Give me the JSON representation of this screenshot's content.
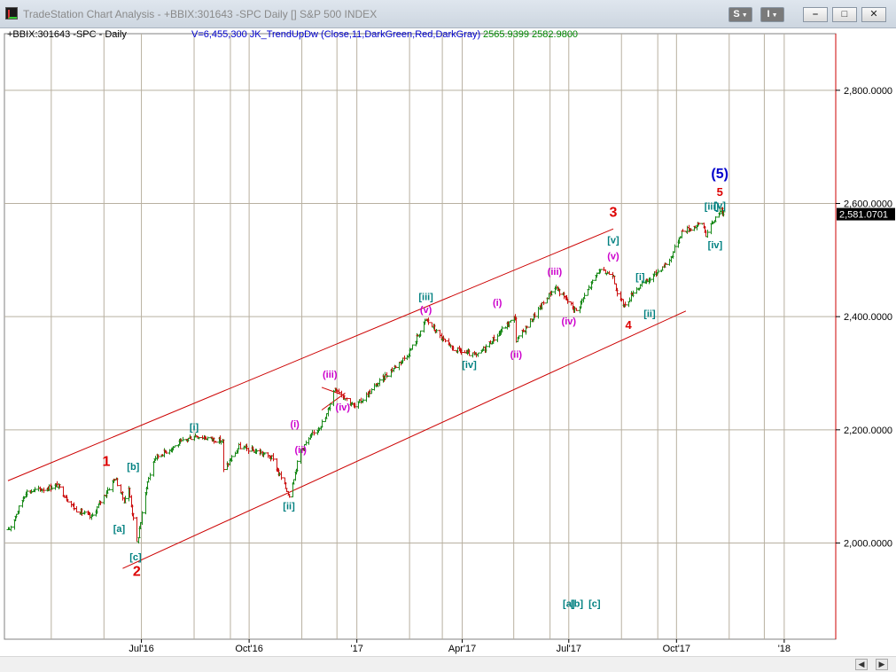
{
  "window": {
    "title": "TradeStation Chart Analysis - +BBIX:301643 -SPC Daily [] S&P 500 INDEX",
    "symbol_button": "S",
    "interval_button": "I"
  },
  "info": {
    "symbol": "+BBIX:301643 -SPC - Daily",
    "volume_indicator": "V=6,455,300  JK_TrendUpDw  (Close,11,DarkGreen,Red,DarkGray)",
    "values": "2565.9399  2582.9800"
  },
  "colors": {
    "up_bar": "#1a8a1a",
    "down_bar": "#cc1111",
    "channel": "#cc0000",
    "grid": "#b8b0a0",
    "wave_red": "#dd0000",
    "wave_teal": "#008080",
    "wave_magenta": "#cc00cc",
    "wave_blue": "#0000cc",
    "last_price_bg": "#000000"
  },
  "chart_data": {
    "type": "ohlc",
    "instrument": "S&P 500 INDEX",
    "interval": "Daily",
    "ylim": [
      1830,
      2900
    ],
    "y_ticks": [
      "2,000.0000",
      "2,200.0000",
      "2,400.0000",
      "2,600.0000",
      "2,800.0000"
    ],
    "y_tick_values": [
      2000,
      2200,
      2400,
      2600,
      2800
    ],
    "x_ticks": [
      "Jul'16",
      "Oct'16",
      "'17",
      "Apr'17",
      "Jul'17",
      "Oct'17",
      "'18"
    ],
    "x_tick_dates": [
      "2016-07-01",
      "2016-10-01",
      "2017-01-01",
      "2017-04-01",
      "2017-07-01",
      "2017-10-01",
      "2018-01-01"
    ],
    "x_range": [
      "2016-03-06",
      "2018-02-14"
    ],
    "last_price": "2,581.0701",
    "last_price_value": 2581.07,
    "price_path": [
      [
        "2016-03-09",
        2020
      ],
      [
        "2016-03-24",
        2090
      ],
      [
        "2016-04-07",
        2095
      ],
      [
        "2016-04-20",
        2102
      ],
      [
        "2016-05-05",
        2060
      ],
      [
        "2016-05-19",
        2045
      ],
      [
        "2016-06-08",
        2115
      ],
      [
        "2016-06-16",
        2075
      ],
      [
        "2016-06-20",
        2095
      ],
      [
        "2016-06-27",
        2000
      ],
      [
        "2016-07-05",
        2100
      ],
      [
        "2016-07-12",
        2150
      ],
      [
        "2016-08-01",
        2175
      ],
      [
        "2016-08-15",
        2190
      ],
      [
        "2016-09-08",
        2180
      ],
      [
        "2016-09-09",
        2128
      ],
      [
        "2016-09-22",
        2170
      ],
      [
        "2016-10-10",
        2160
      ],
      [
        "2016-10-20",
        2150
      ],
      [
        "2016-11-04",
        2084
      ],
      [
        "2016-11-14",
        2165
      ],
      [
        "2016-12-05",
        2220
      ],
      [
        "2016-12-13",
        2275
      ],
      [
        "2016-12-30",
        2240
      ],
      [
        "2017-01-25",
        2295
      ],
      [
        "2017-02-14",
        2335
      ],
      [
        "2017-03-01",
        2395
      ],
      [
        "2017-03-21",
        2345
      ],
      [
        "2017-04-13",
        2330
      ],
      [
        "2017-05-16",
        2400
      ],
      [
        "2017-05-17",
        2357
      ],
      [
        "2017-06-19",
        2453
      ],
      [
        "2017-07-03",
        2420
      ],
      [
        "2017-07-07",
        2410
      ],
      [
        "2017-07-26",
        2480
      ],
      [
        "2017-08-08",
        2475
      ],
      [
        "2017-08-11",
        2437
      ],
      [
        "2017-08-18",
        2418
      ],
      [
        "2017-08-25",
        2445
      ],
      [
        "2017-09-07",
        2465
      ],
      [
        "2017-09-25",
        2500
      ],
      [
        "2017-10-05",
        2550
      ],
      [
        "2017-10-23",
        2565
      ],
      [
        "2017-10-26",
        2545
      ],
      [
        "2017-11-07",
        2590
      ],
      [
        "2017-11-10",
        2581
      ]
    ],
    "channel_lines": [
      {
        "from": [
          "2016-03-09",
          2110
        ],
        "to": [
          "2017-08-08",
          2555
        ]
      },
      {
        "from": [
          "2016-06-15",
          1955
        ],
        "to": [
          "2017-10-09",
          2410
        ]
      },
      {
        "from": [
          "2016-12-02",
          2275
        ],
        "to": [
          "2016-12-22",
          2260
        ]
      },
      {
        "from": [
          "2016-12-02",
          2235
        ],
        "to": [
          "2016-12-22",
          2265
        ]
      }
    ],
    "wave_labels": [
      {
        "text": "1",
        "date": "2016-06-01",
        "price": 2145,
        "color": "red",
        "size": "large"
      },
      {
        "text": "2",
        "date": "2016-06-27",
        "price": 1950,
        "color": "red",
        "size": "large"
      },
      {
        "text": "3",
        "date": "2017-08-08",
        "price": 2585,
        "color": "red",
        "size": "large"
      },
      {
        "text": "4",
        "date": "2017-08-21",
        "price": 2385,
        "color": "red",
        "size": "medium"
      },
      {
        "text": "5",
        "date": "2017-11-07",
        "price": 2620,
        "color": "red",
        "size": "medium"
      },
      {
        "text": "(5)",
        "date": "2017-11-07",
        "price": 2653,
        "color": "blue",
        "size": "xlarge"
      },
      {
        "text": "[a]",
        "date": "2016-06-12",
        "price": 2025,
        "color": "teal"
      },
      {
        "text": "[b]",
        "date": "2016-06-24",
        "price": 2135,
        "color": "teal"
      },
      {
        "text": "[c]",
        "date": "2016-06-26",
        "price": 1975,
        "color": "teal"
      },
      {
        "text": "[i]",
        "date": "2016-08-15",
        "price": 2205,
        "color": "teal"
      },
      {
        "text": "[ii]",
        "date": "2016-11-04",
        "price": 2065,
        "color": "teal"
      },
      {
        "text": "[iii]",
        "date": "2017-03-01",
        "price": 2435,
        "color": "teal"
      },
      {
        "text": "[iv]",
        "date": "2017-04-07",
        "price": 2315,
        "color": "teal"
      },
      {
        "text": "[v]",
        "date": "2017-08-08",
        "price": 2535,
        "color": "teal"
      },
      {
        "text": "[i]",
        "date": "2017-08-31",
        "price": 2470,
        "color": "teal"
      },
      {
        "text": "[ii]",
        "date": "2017-09-08",
        "price": 2405,
        "color": "teal"
      },
      {
        "text": "[iii]",
        "date": "2017-10-31",
        "price": 2595,
        "color": "teal"
      },
      {
        "text": "[iv]",
        "date": "2017-11-03",
        "price": 2527,
        "color": "teal"
      },
      {
        "text": "[v]",
        "date": "2017-11-07",
        "price": 2596,
        "color": "teal"
      },
      {
        "text": "[a]",
        "date": "2017-07-01",
        "price": 1893,
        "color": "teal"
      },
      {
        "text": "[b]",
        "date": "2017-07-08",
        "price": 1893,
        "color": "teal"
      },
      {
        "text": "[c]",
        "date": "2017-07-23",
        "price": 1893,
        "color": "teal"
      },
      {
        "text": "(i)",
        "date": "2016-11-09",
        "price": 2210,
        "color": "magenta"
      },
      {
        "text": "(ii)",
        "date": "2016-11-14",
        "price": 2165,
        "color": "magenta"
      },
      {
        "text": "(iii)",
        "date": "2016-12-09",
        "price": 2298,
        "color": "magenta"
      },
      {
        "text": "(iv)",
        "date": "2016-12-20",
        "price": 2240,
        "color": "magenta"
      },
      {
        "text": "(v)",
        "date": "2017-03-01",
        "price": 2412,
        "color": "magenta"
      },
      {
        "text": "(i)",
        "date": "2017-05-01",
        "price": 2425,
        "color": "magenta"
      },
      {
        "text": "(ii)",
        "date": "2017-05-17",
        "price": 2333,
        "color": "magenta"
      },
      {
        "text": "(iii)",
        "date": "2017-06-19",
        "price": 2480,
        "color": "magenta"
      },
      {
        "text": "(iv)",
        "date": "2017-07-01",
        "price": 2392,
        "color": "magenta"
      },
      {
        "text": "(v)",
        "date": "2017-08-08",
        "price": 2507,
        "color": "magenta"
      }
    ]
  }
}
